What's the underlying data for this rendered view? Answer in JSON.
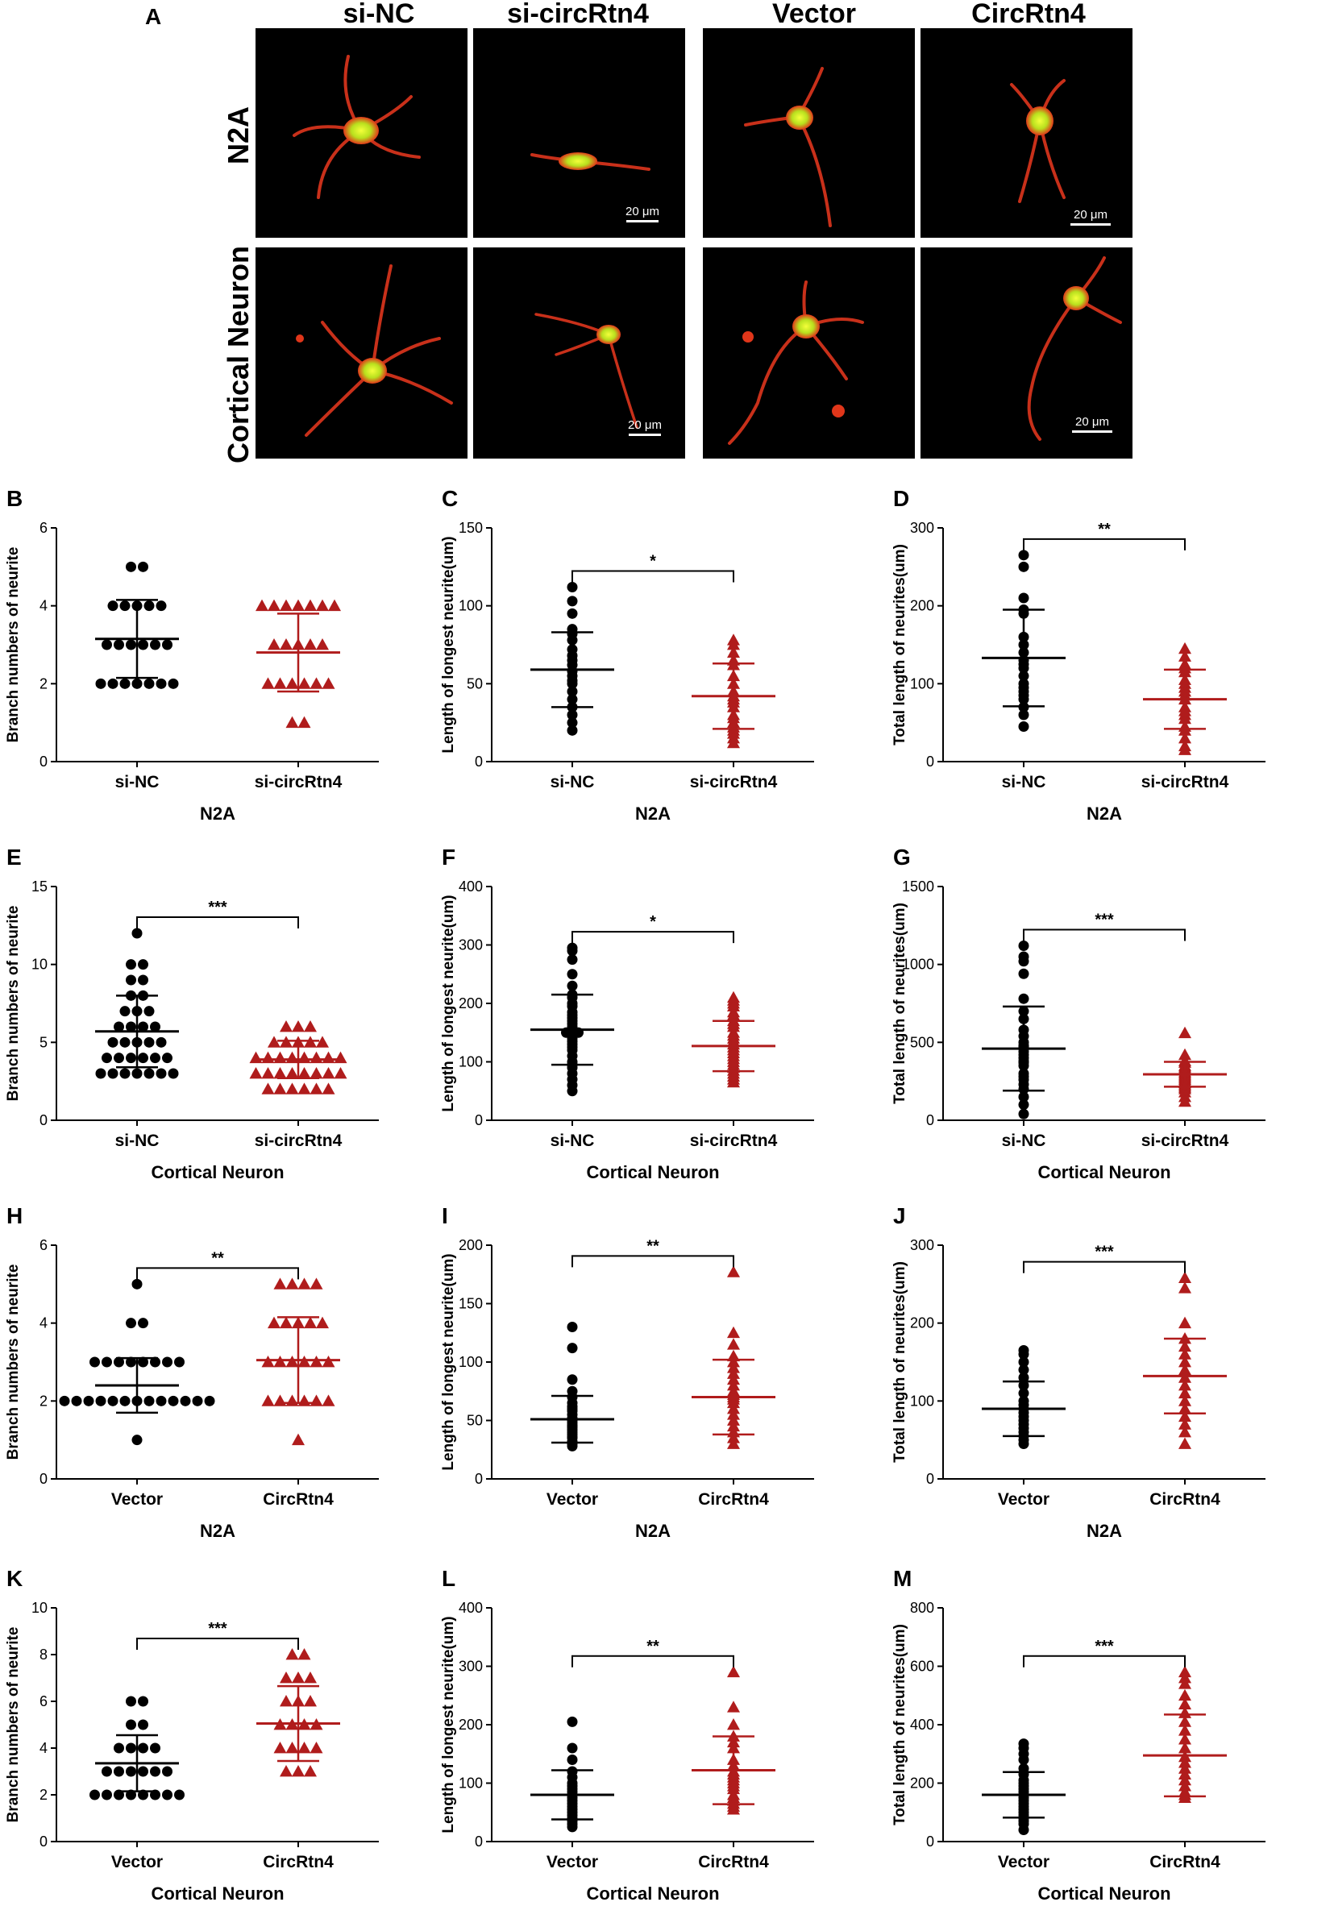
{
  "panel_a": {
    "letter": "A",
    "columns": [
      "si-NC",
      "si-circRtn4",
      "Vector",
      "CircRtn4"
    ],
    "rows": [
      "N2A",
      "Cortical Neuron"
    ],
    "scale_bar": "20 μm"
  },
  "chart_data": [
    {
      "id": "B",
      "type": "scatter",
      "ylabel": "Branch numbers of neurite",
      "xlabel": "N2A",
      "categories": [
        "si-NC",
        "si-circRtn4"
      ],
      "ylim": [
        0,
        6
      ],
      "yticks": [
        0,
        2,
        4,
        6
      ],
      "significance": "",
      "series": [
        {
          "name": "si-NC",
          "mean": 3.15,
          "sd": 1.0,
          "marker": "circle",
          "color": "#000000",
          "values": [
            5,
            5,
            4,
            4,
            4,
            4,
            4,
            3,
            3,
            3,
            3,
            3,
            3,
            2,
            2,
            2,
            2,
            2,
            2,
            2
          ]
        },
        {
          "name": "si-circRtn4",
          "mean": 2.8,
          "sd": 1.0,
          "marker": "triangle",
          "color": "#b01c1c",
          "values": [
            4,
            4,
            4,
            4,
            4,
            4,
            4,
            3,
            3,
            3,
            3,
            3,
            2,
            2,
            2,
            2,
            2,
            2,
            1,
            1
          ]
        }
      ]
    },
    {
      "id": "C",
      "type": "scatter",
      "ylabel": "Length of longest neurite(um)",
      "xlabel": "N2A",
      "categories": [
        "si-NC",
        "si-circRtn4"
      ],
      "ylim": [
        0,
        150
      ],
      "yticks": [
        0,
        50,
        100,
        150
      ],
      "significance": "*",
      "series": [
        {
          "name": "si-NC",
          "mean": 59,
          "sd": 24,
          "marker": "circle",
          "color": "#000000",
          "values": [
            112,
            103,
            95,
            85,
            82,
            78,
            72,
            68,
            65,
            62,
            58,
            55,
            52,
            50,
            45,
            40,
            35,
            30,
            25,
            20
          ]
        },
        {
          "name": "si-circRtn4",
          "mean": 42,
          "sd": 21,
          "marker": "triangle",
          "color": "#b01c1c",
          "values": [
            78,
            75,
            70,
            65,
            62,
            55,
            50,
            45,
            42,
            40,
            38,
            35,
            30,
            28,
            25,
            22,
            20,
            18,
            15,
            12
          ]
        }
      ]
    },
    {
      "id": "D",
      "type": "scatter",
      "ylabel": "Total length of neurites(um)",
      "xlabel": "N2A",
      "categories": [
        "si-NC",
        "si-circRtn4"
      ],
      "ylim": [
        0,
        300
      ],
      "yticks": [
        0,
        100,
        200,
        300
      ],
      "significance": "**",
      "series": [
        {
          "name": "si-NC",
          "mean": 133,
          "sd": 62,
          "marker": "circle",
          "color": "#000000",
          "values": [
            265,
            250,
            210,
            195,
            190,
            160,
            150,
            140,
            130,
            125,
            120,
            110,
            100,
            95,
            90,
            85,
            80,
            70,
            60,
            45
          ]
        },
        {
          "name": "si-circRtn4",
          "mean": 80,
          "sd": 38,
          "marker": "triangle",
          "color": "#b01c1c",
          "values": [
            145,
            135,
            125,
            120,
            115,
            105,
            100,
            95,
            90,
            85,
            80,
            70,
            65,
            60,
            55,
            45,
            40,
            30,
            20,
            15
          ]
        }
      ]
    },
    {
      "id": "E",
      "type": "scatter",
      "ylabel": "Branch numbers of neurite",
      "xlabel": "Cortical Neuron",
      "categories": [
        "si-NC",
        "si-circRtn4"
      ],
      "ylim": [
        0,
        15
      ],
      "yticks": [
        0,
        5,
        10,
        15
      ],
      "significance": "***",
      "series": [
        {
          "name": "si-NC",
          "mean": 5.7,
          "sd": 2.3,
          "marker": "circle",
          "color": "#000000",
          "values": [
            12,
            10,
            10,
            9,
            9,
            8,
            8,
            7,
            7,
            7,
            6,
            6,
            6,
            6,
            5,
            5,
            5,
            5,
            5,
            4,
            4,
            4,
            4,
            4,
            4,
            3,
            3,
            3,
            3,
            3,
            3,
            3
          ]
        },
        {
          "name": "si-circRtn4",
          "mean": 3.9,
          "sd": 1.2,
          "marker": "triangle",
          "color": "#b01c1c",
          "values": [
            6,
            6,
            6,
            5,
            5,
            5,
            5,
            5,
            4,
            4,
            4,
            4,
            4,
            4,
            4,
            4,
            3,
            3,
            3,
            3,
            3,
            3,
            3,
            3,
            2,
            2,
            2,
            2,
            2,
            2
          ]
        }
      ]
    },
    {
      "id": "F",
      "type": "scatter",
      "ylabel": "Length of longest neurite(um)",
      "xlabel": "Cortical Neuron",
      "categories": [
        "si-NC",
        "si-circRtn4"
      ],
      "ylim": [
        0,
        400
      ],
      "yticks": [
        0,
        100,
        200,
        300,
        400
      ],
      "significance": "*",
      "series": [
        {
          "name": "si-NC",
          "mean": 155,
          "sd": 60,
          "marker": "circle",
          "color": "#000000",
          "values": [
            295,
            290,
            275,
            250,
            230,
            215,
            210,
            200,
            195,
            185,
            180,
            175,
            170,
            165,
            160,
            155,
            150,
            150,
            140,
            135,
            130,
            125,
            120,
            110,
            100,
            95,
            90,
            80,
            70,
            60,
            50
          ]
        },
        {
          "name": "si-circRtn4",
          "mean": 127,
          "sd": 43,
          "marker": "triangle",
          "color": "#b01c1c",
          "values": [
            210,
            205,
            200,
            195,
            185,
            180,
            170,
            165,
            160,
            150,
            145,
            140,
            135,
            130,
            125,
            120,
            115,
            110,
            105,
            100,
            95,
            90,
            85,
            80,
            75,
            70,
            65
          ]
        }
      ]
    },
    {
      "id": "G",
      "type": "scatter",
      "ylabel": "Total length of neurites(um)",
      "xlabel": "Cortical Neuron",
      "categories": [
        "si-NC",
        "si-circRtn4"
      ],
      "ylim": [
        0,
        1500
      ],
      "yticks": [
        0,
        500,
        1000,
        1500
      ],
      "significance": "***",
      "series": [
        {
          "name": "si-NC",
          "mean": 460,
          "sd": 270,
          "marker": "circle",
          "color": "#000000",
          "values": [
            1120,
            1050,
            1020,
            940,
            780,
            700,
            650,
            580,
            540,
            500,
            480,
            470,
            460,
            440,
            420,
            400,
            380,
            370,
            350,
            300,
            280,
            260,
            230,
            200,
            150,
            100,
            40
          ]
        },
        {
          "name": "si-circRtn4",
          "mean": 295,
          "sd": 80,
          "marker": "triangle",
          "color": "#b01c1c",
          "values": [
            560,
            420,
            380,
            370,
            350,
            340,
            330,
            320,
            310,
            300,
            290,
            280,
            270,
            260,
            250,
            240,
            230,
            220,
            210,
            200,
            180,
            150,
            120
          ]
        }
      ]
    },
    {
      "id": "H",
      "type": "scatter",
      "ylabel": "Branch numbers of neurite",
      "xlabel": "N2A",
      "categories": [
        "Vector",
        "CircRtn4"
      ],
      "ylim": [
        0,
        6
      ],
      "yticks": [
        0,
        2,
        4,
        6
      ],
      "significance": "**",
      "series": [
        {
          "name": "Vector",
          "mean": 2.4,
          "sd": 0.7,
          "marker": "circle",
          "color": "#000000",
          "values": [
            5,
            4,
            4,
            3,
            3,
            3,
            3,
            3,
            3,
            3,
            3,
            2,
            2,
            2,
            2,
            2,
            2,
            2,
            2,
            2,
            2,
            2,
            2,
            2,
            1
          ]
        },
        {
          "name": "CircRtn4",
          "mean": 3.05,
          "sd": 1.1,
          "marker": "triangle",
          "color": "#b01c1c",
          "values": [
            5,
            5,
            5,
            5,
            4,
            4,
            4,
            4,
            4,
            3,
            3,
            3,
            3,
            3,
            3,
            2,
            2,
            2,
            2,
            2,
            2,
            1
          ]
        }
      ]
    },
    {
      "id": "I",
      "type": "scatter",
      "ylabel": "Length of longest neurite(um)",
      "xlabel": "N2A",
      "categories": [
        "Vector",
        "CircRtn4"
      ],
      "ylim": [
        0,
        200
      ],
      "yticks": [
        0,
        50,
        100,
        150,
        200
      ],
      "significance": "**",
      "series": [
        {
          "name": "Vector",
          "mean": 51,
          "sd": 20,
          "marker": "circle",
          "color": "#000000",
          "values": [
            130,
            112,
            85,
            75,
            70,
            65,
            62,
            60,
            58,
            55,
            52,
            50,
            48,
            46,
            45,
            44,
            42,
            40,
            38,
            36,
            35,
            32,
            30,
            28
          ]
        },
        {
          "name": "CircRtn4",
          "mean": 70,
          "sd": 32,
          "marker": "triangle",
          "color": "#b01c1c",
          "values": [
            177,
            125,
            115,
            105,
            100,
            95,
            90,
            85,
            80,
            75,
            72,
            70,
            68,
            65,
            60,
            55,
            50,
            45,
            40,
            35,
            30
          ]
        }
      ]
    },
    {
      "id": "J",
      "type": "scatter",
      "ylabel": "Total length of neurites(um)",
      "xlabel": "N2A",
      "categories": [
        "Vector",
        "CircRtn4"
      ],
      "ylim": [
        0,
        300
      ],
      "yticks": [
        0,
        100,
        200,
        300
      ],
      "significance": "***",
      "series": [
        {
          "name": "Vector",
          "mean": 90,
          "sd": 35,
          "marker": "circle",
          "color": "#000000",
          "values": [
            165,
            160,
            150,
            140,
            130,
            120,
            110,
            100,
            95,
            90,
            85,
            80,
            75,
            70,
            65,
            60,
            55,
            50,
            45
          ]
        },
        {
          "name": "CircRtn4",
          "mean": 132,
          "sd": 48,
          "marker": "triangle",
          "color": "#b01c1c",
          "values": [
            258,
            245,
            200,
            180,
            170,
            160,
            150,
            140,
            130,
            120,
            110,
            100,
            90,
            80,
            70,
            60,
            45
          ]
        }
      ]
    },
    {
      "id": "K",
      "type": "scatter",
      "ylabel": "Branch numbers of neurite",
      "xlabel": "Cortical Neuron",
      "categories": [
        "Vector",
        "CircRtn4"
      ],
      "ylim": [
        0,
        10
      ],
      "yticks": [
        0,
        2,
        4,
        6,
        8,
        10
      ],
      "significance": "***",
      "series": [
        {
          "name": "Vector",
          "mean": 3.35,
          "sd": 1.2,
          "marker": "circle",
          "color": "#000000",
          "values": [
            6,
            6,
            5,
            5,
            4,
            4,
            4,
            4,
            3,
            3,
            3,
            3,
            3,
            3,
            2,
            2,
            2,
            2,
            2,
            2,
            2,
            2
          ]
        },
        {
          "name": "CircRtn4",
          "mean": 5.05,
          "sd": 1.6,
          "marker": "triangle",
          "color": "#b01c1c",
          "values": [
            8,
            8,
            7,
            7,
            7,
            6,
            6,
            6,
            5,
            5,
            5,
            5,
            4,
            4,
            4,
            4,
            3,
            3,
            3
          ]
        }
      ]
    },
    {
      "id": "L",
      "type": "scatter",
      "ylabel": "Length of longest neurite(um)",
      "xlabel": "Cortical Neuron",
      "categories": [
        "Vector",
        "CircRtn4"
      ],
      "ylim": [
        0,
        400
      ],
      "yticks": [
        0,
        100,
        200,
        300,
        400
      ],
      "significance": "**",
      "series": [
        {
          "name": "Vector",
          "mean": 80,
          "sd": 42,
          "marker": "circle",
          "color": "#000000",
          "values": [
            205,
            160,
            140,
            120,
            110,
            100,
            95,
            90,
            85,
            80,
            75,
            70,
            65,
            60,
            55,
            50,
            45,
            40,
            35,
            30,
            25
          ]
        },
        {
          "name": "CircRtn4",
          "mean": 122,
          "sd": 58,
          "marker": "triangle",
          "color": "#b01c1c",
          "values": [
            290,
            230,
            200,
            180,
            170,
            160,
            140,
            130,
            120,
            115,
            110,
            105,
            100,
            95,
            90,
            80,
            75,
            70,
            65,
            60,
            55
          ]
        }
      ]
    },
    {
      "id": "M",
      "type": "scatter",
      "ylabel": "Total length of neurites(um)",
      "xlabel": "Cortical Neuron",
      "categories": [
        "Vector",
        "CircRtn4"
      ],
      "ylim": [
        0,
        800
      ],
      "yticks": [
        0,
        200,
        400,
        600,
        800
      ],
      "significance": "***",
      "series": [
        {
          "name": "Vector",
          "mean": 160,
          "sd": 78,
          "marker": "circle",
          "color": "#000000",
          "values": [
            335,
            320,
            300,
            280,
            250,
            230,
            210,
            200,
            190,
            180,
            170,
            160,
            150,
            140,
            130,
            120,
            110,
            100,
            90,
            80,
            70,
            60,
            40
          ]
        },
        {
          "name": "CircRtn4",
          "mean": 295,
          "sd": 140,
          "marker": "triangle",
          "color": "#b01c1c",
          "values": [
            580,
            560,
            540,
            500,
            470,
            440,
            410,
            380,
            350,
            320,
            290,
            270,
            250,
            230,
            210,
            190,
            170,
            160,
            150
          ]
        }
      ]
    }
  ]
}
